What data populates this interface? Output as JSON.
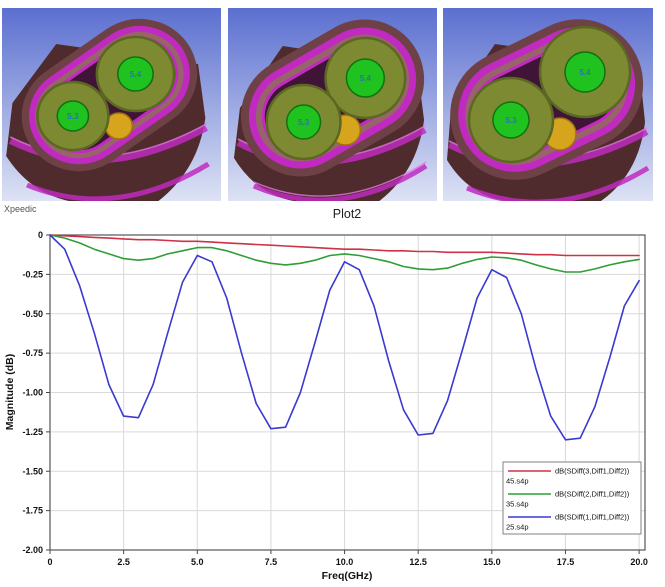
{
  "watermark": "Xpeedic",
  "renders": {
    "panels": [
      {
        "id": "view-1",
        "conductor_top_label": "5.4",
        "conductor_bottom_label": "5.3"
      },
      {
        "id": "view-2",
        "conductor_top_label": "5.4",
        "conductor_bottom_label": "5.3"
      },
      {
        "id": "view-3",
        "conductor_top_label": "5.4",
        "conductor_bottom_label": "5.3"
      }
    ],
    "colors": {
      "bg_top": "#5b6fd0",
      "bg_bottom": "#dde2f4",
      "body": "#4f2b2d",
      "body_dark": "#3f2023",
      "face_ring": "#6d4145",
      "magenta": "#c02ac0",
      "magenta_bright": "#e575e5",
      "dielectric": "#97646a",
      "cavity": "#401437",
      "olive": "#7d8a31",
      "olive_ring": "#5c6822",
      "core_green": "#1fc21f",
      "core_ring": "#127012",
      "label_blue": "#2e6fc0",
      "drain_orange": "#d7a41e",
      "drain_ring": "#9c7410"
    }
  },
  "chart_data": {
    "type": "line",
    "title": "Plot2",
    "xlabel": "Freq(GHz)",
    "ylabel": "Magnitude (dB)",
    "xlim": [
      0,
      20.2
    ],
    "ylim": [
      -2.0,
      0
    ],
    "grid": true,
    "legend_position": "bottom-right",
    "x_ticks": [
      0,
      2.5,
      5,
      7.5,
      10,
      12.5,
      15,
      17.5,
      20
    ],
    "x_tick_labels": [
      "0",
      "2.5",
      "5.0",
      "7.5",
      "10.0",
      "12.5",
      "15.0",
      "17.5",
      "20.0"
    ],
    "y_ticks": [
      0,
      -0.25,
      -0.5,
      -0.75,
      -1,
      -1.25,
      -1.5,
      -1.75,
      -2
    ],
    "y_tick_labels": [
      "0",
      "-0.25",
      "-0.50",
      "-0.75",
      "-1.00",
      "-1.25",
      "-1.50",
      "-1.75",
      "-2.00"
    ],
    "x": [
      0,
      0.5,
      1,
      1.5,
      2,
      2.5,
      3,
      3.5,
      4,
      4.5,
      5,
      5.5,
      6,
      6.5,
      7,
      7.5,
      8,
      8.5,
      9,
      9.5,
      10,
      10.5,
      11,
      11.5,
      12,
      12.5,
      13,
      13.5,
      14,
      14.5,
      15,
      15.5,
      16,
      16.5,
      17,
      17.5,
      18,
      18.5,
      19,
      19.5,
      20
    ],
    "series": [
      {
        "name": "dB(SDiff(3,Diff1,Diff2))",
        "file": "45.s4p",
        "color": "#cc3347",
        "values": [
          0,
          -0.005,
          -0.01,
          -0.015,
          -0.02,
          -0.025,
          -0.03,
          -0.03,
          -0.035,
          -0.04,
          -0.04,
          -0.045,
          -0.05,
          -0.055,
          -0.06,
          -0.065,
          -0.07,
          -0.075,
          -0.08,
          -0.085,
          -0.09,
          -0.09,
          -0.095,
          -0.1,
          -0.1,
          -0.105,
          -0.105,
          -0.11,
          -0.11,
          -0.11,
          -0.11,
          -0.115,
          -0.12,
          -0.125,
          -0.125,
          -0.13,
          -0.13,
          -0.13,
          -0.13,
          -0.13,
          -0.13
        ]
      },
      {
        "name": "dB(SDiff(2,Diff1,Diff2))",
        "file": "35.s4p",
        "color": "#2f9e35",
        "values": [
          0,
          -0.02,
          -0.05,
          -0.09,
          -0.12,
          -0.15,
          -0.16,
          -0.15,
          -0.12,
          -0.1,
          -0.08,
          -0.08,
          -0.1,
          -0.13,
          -0.16,
          -0.18,
          -0.19,
          -0.18,
          -0.16,
          -0.13,
          -0.12,
          -0.13,
          -0.15,
          -0.17,
          -0.2,
          -0.215,
          -0.22,
          -0.21,
          -0.18,
          -0.155,
          -0.14,
          -0.145,
          -0.16,
          -0.19,
          -0.215,
          -0.235,
          -0.235,
          -0.215,
          -0.19,
          -0.17,
          -0.155
        ]
      },
      {
        "name": "dB(SDiff(1,Diff1,Diff2))",
        "file": "25.s4p",
        "color": "#3a3ad0",
        "values": [
          0,
          -0.09,
          -0.32,
          -0.62,
          -0.95,
          -1.15,
          -1.16,
          -0.95,
          -0.62,
          -0.3,
          -0.13,
          -0.17,
          -0.4,
          -0.75,
          -1.07,
          -1.23,
          -1.22,
          -1.0,
          -0.68,
          -0.35,
          -0.17,
          -0.22,
          -0.45,
          -0.8,
          -1.11,
          -1.27,
          -1.26,
          -1.05,
          -0.73,
          -0.4,
          -0.22,
          -0.27,
          -0.5,
          -0.85,
          -1.15,
          -1.3,
          -1.29,
          -1.09,
          -0.78,
          -0.45,
          -0.29
        ]
      }
    ]
  }
}
